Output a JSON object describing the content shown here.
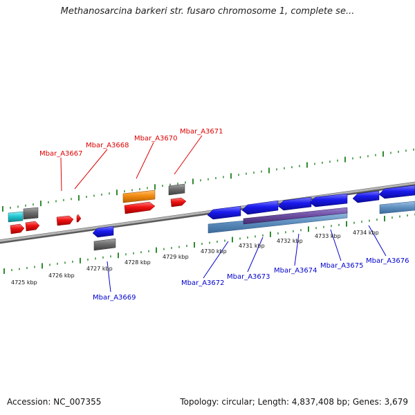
{
  "title": "Methanosarcina barkeri str. fusaro chromosome 1, complete se...",
  "footer": {
    "accession": "Accession: NC_007355",
    "stats": "Topology: circular; Length: 4,837,408 bp; Genes: 3,679"
  },
  "colors": {
    "forward_label": "#dd0000",
    "reverse_label": "#0000cc",
    "tick_marks": "#2f8a2f",
    "backbone": "#8c8c8c",
    "gene_red": "#ee1111",
    "gene_blue": "#1a1aee",
    "gene_gray": "#6e6e6e",
    "gene_orange": "#f28c10",
    "gene_cyan": "#22c7d2",
    "feature_steelblue": "#5f8fbf",
    "feature_purple": "#6a4ca0"
  },
  "scale": {
    "ticks": [
      "4725 kbp",
      "4726 kbp",
      "4727 kbp",
      "4728 kbp",
      "4729 kbp",
      "4730 kbp",
      "4731 kbp",
      "4732 kbp",
      "4733 kbp",
      "4734 kbp"
    ]
  },
  "genes": [
    {
      "name": "Mbar_A3667",
      "strand": "forward"
    },
    {
      "name": "Mbar_A3668",
      "strand": "forward"
    },
    {
      "name": "Mbar_A3670",
      "strand": "forward"
    },
    {
      "name": "Mbar_A3671",
      "strand": "forward"
    },
    {
      "name": "Mbar_A3669",
      "strand": "reverse"
    },
    {
      "name": "Mbar_A3672",
      "strand": "reverse"
    },
    {
      "name": "Mbar_A3673",
      "strand": "reverse"
    },
    {
      "name": "Mbar_A3674",
      "strand": "reverse"
    },
    {
      "name": "Mbar_A3675",
      "strand": "reverse"
    },
    {
      "name": "Mbar_A3676",
      "strand": "reverse"
    }
  ]
}
